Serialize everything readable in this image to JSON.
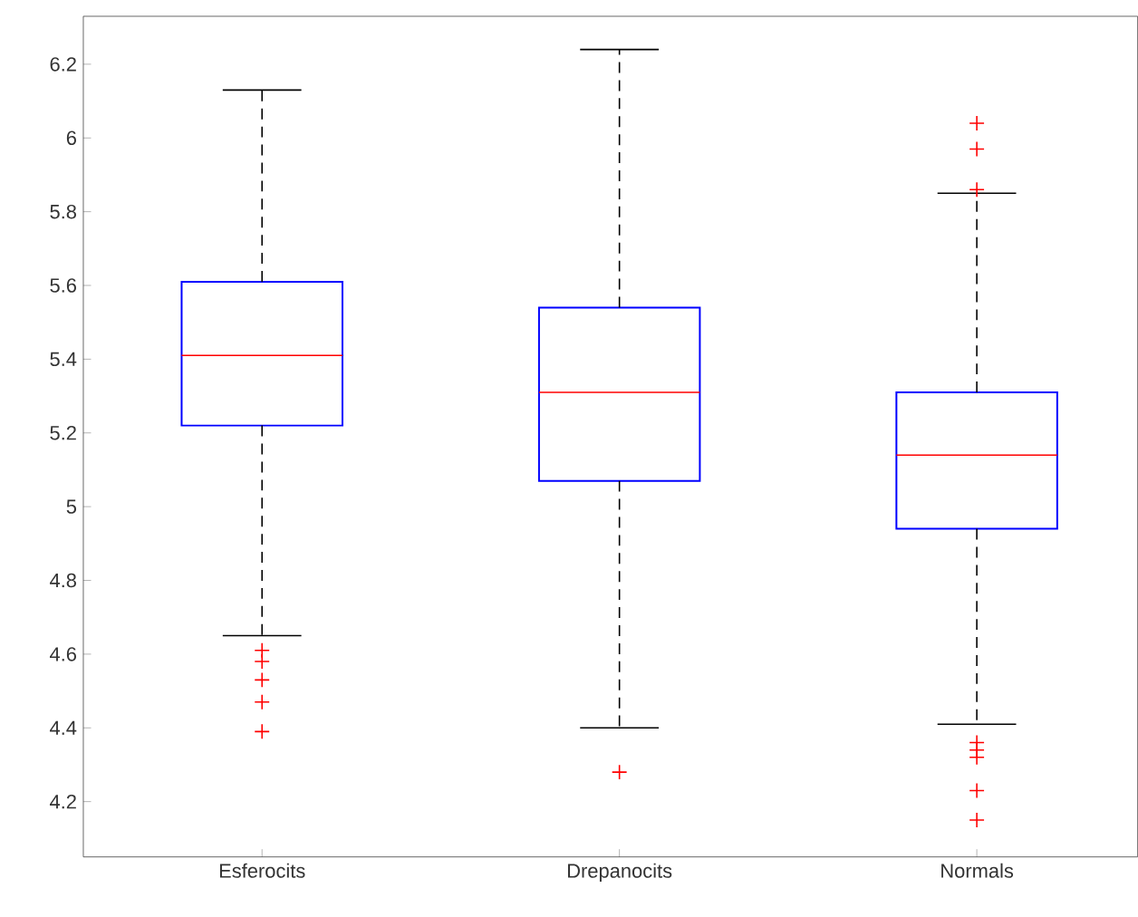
{
  "chart_data": {
    "type": "box",
    "categories": [
      "Esferocits",
      "Drepanocits",
      "Normals"
    ],
    "color": "#0000ff",
    "boxes": [
      {
        "low": 4.65,
        "q1": 5.22,
        "median": 5.41,
        "q3": 5.61,
        "high": 6.13,
        "outliers": [
          4.61,
          4.58,
          4.53,
          4.47,
          4.39
        ]
      },
      {
        "low": 4.4,
        "q1": 5.07,
        "median": 5.31,
        "q3": 5.54,
        "high": 6.24,
        "outliers": [
          4.28
        ]
      },
      {
        "low": 4.41,
        "q1": 4.94,
        "median": 5.14,
        "q3": 5.31,
        "high": 5.85,
        "outliers": [
          6.04,
          5.97,
          5.86,
          4.36,
          4.34,
          4.32,
          4.23,
          4.15
        ]
      }
    ],
    "ylim": [
      4.05,
      6.33
    ],
    "yticks": [
      4.2,
      4.4,
      4.6,
      4.8,
      5,
      5.2,
      5.4,
      5.6,
      5.8,
      6,
      6.2
    ],
    "grid": false
  }
}
